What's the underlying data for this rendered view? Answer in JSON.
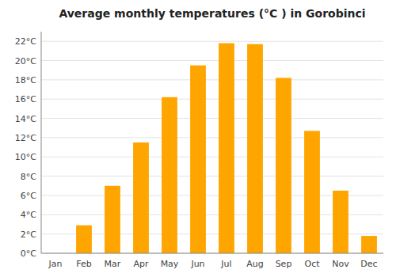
{
  "chart_data": {
    "type": "bar",
    "title": "Average monthly temperatures (°C ) in Gorobinci",
    "categories": [
      "Jan",
      "Feb",
      "Mar",
      "Apr",
      "May",
      "Jun",
      "Jul",
      "Aug",
      "Sep",
      "Oct",
      "Nov",
      "Dec"
    ],
    "values": [
      0,
      2.9,
      7.0,
      11.5,
      16.2,
      19.5,
      21.8,
      21.7,
      18.2,
      12.7,
      6.5,
      1.8
    ],
    "color": "#FFA500",
    "ylim": [
      0,
      23
    ],
    "yticks": [
      {
        "value": 0,
        "label": "0°C"
      },
      {
        "value": 2,
        "label": "2°C"
      },
      {
        "value": 4,
        "label": "4°C"
      },
      {
        "value": 6,
        "label": "6°C"
      },
      {
        "value": 8,
        "label": "8°C"
      },
      {
        "value": 10,
        "label": "10°C"
      },
      {
        "value": 12,
        "label": "12°C"
      },
      {
        "value": 14,
        "label": "14°C"
      },
      {
        "value": 16,
        "label": "16°C"
      },
      {
        "value": 18,
        "label": "18°C"
      },
      {
        "value": 20,
        "label": "20°C"
      },
      {
        "value": 22,
        "label": "22°C"
      }
    ],
    "grid": true
  }
}
